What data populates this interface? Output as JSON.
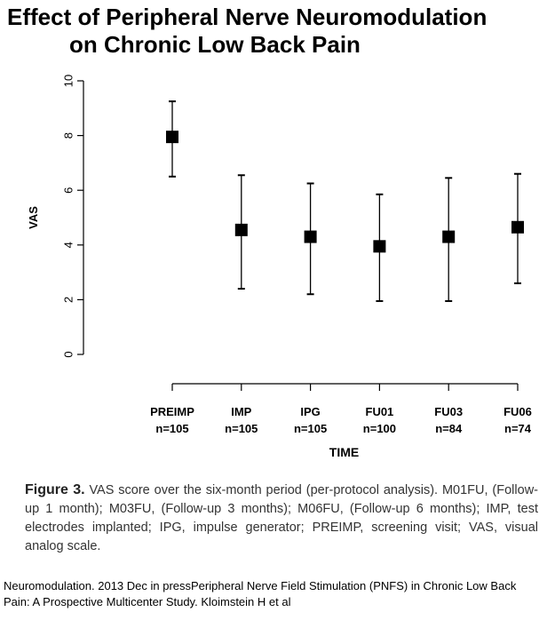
{
  "title_line1": "Effect of Peripheral Nerve Neuromodulation",
  "title_line2": "on Chronic Low Back Pain",
  "chart_data": {
    "type": "scatter",
    "subtype": "mean with error bars",
    "xlabel": "TIME",
    "ylabel": "VAS",
    "ylim": [
      0,
      10
    ],
    "yticks": [
      "0",
      "2",
      "4",
      "6",
      "8",
      "10"
    ],
    "categories": [
      {
        "label": "PREIMP",
        "n": "n=105"
      },
      {
        "label": "IMP",
        "n": "n=105"
      },
      {
        "label": "IPG",
        "n": "n=105"
      },
      {
        "label": "FU01",
        "n": "n=100"
      },
      {
        "label": "FU03",
        "n": "n=84"
      },
      {
        "label": "FU06",
        "n": "n=74"
      }
    ],
    "means": [
      7.95,
      4.55,
      4.3,
      3.95,
      4.3,
      4.65
    ],
    "upper": [
      9.25,
      6.55,
      6.25,
      5.85,
      6.45,
      6.6
    ],
    "lower": [
      6.5,
      2.4,
      2.2,
      1.95,
      1.95,
      2.6
    ],
    "marker": "filled square",
    "grid": false
  },
  "caption": {
    "label": "Figure 3.",
    "text": "VAS score over the six-month period (per-protocol analysis). M01FU, (Follow-up 1 month); M03FU, (Follow-up 3 months); M06FU, (Follow-up 6 months); IMP, test electrodes implanted; IPG, impulse generator; PREIMP, screening visit; VAS, visual analog scale."
  },
  "source": "Neuromodulation. 2013 Dec in pressPeripheral Nerve Field Stimulation (PNFS) in Chronic Low Back Pain: A Prospective Multicenter Study. Kloimstein H et al"
}
